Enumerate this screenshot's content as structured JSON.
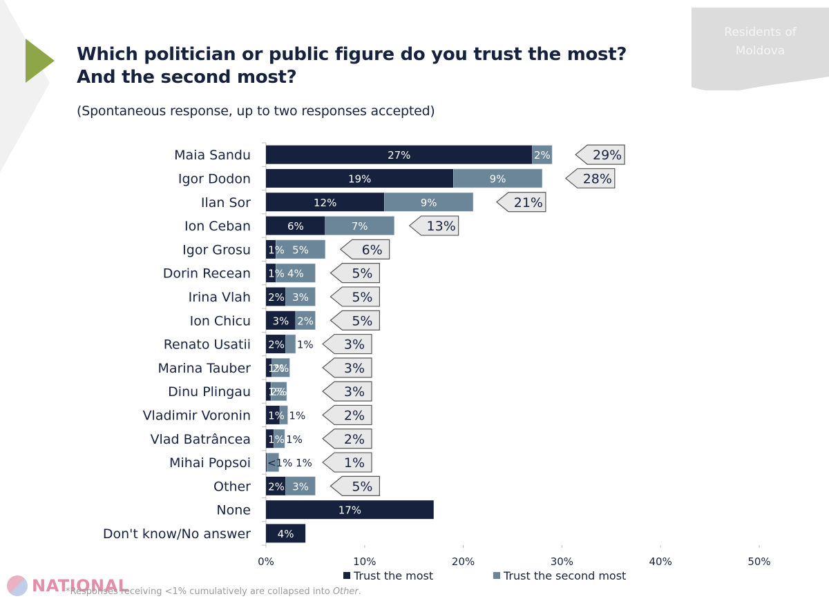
{
  "header": {
    "title_line1": "Which politician or public figure do you trust the most?",
    "title_line2": "And the second most?",
    "subtitle": "(Spontaneous response, up to two responses accepted)",
    "region_tag_line1": "Residents of",
    "region_tag_line2": "Moldova"
  },
  "colors": {
    "trust_most": "#16213e",
    "trust_second": "#6b8599",
    "total_callout_fill": "#e8e8e8",
    "total_callout_stroke": "#555555",
    "accent_arrow": "#8fa648"
  },
  "chart_data": {
    "type": "bar",
    "orientation": "horizontal",
    "stacked": true,
    "title": "Which politician or public figure do you trust the most? And the second most?",
    "subtitle": "(Spontaneous response, up to two responses accepted)",
    "xlabel": "",
    "ylabel": "",
    "xlim": [
      0,
      50
    ],
    "x_ticks": [
      "0%",
      "10%",
      "20%",
      "30%",
      "40%",
      "50%"
    ],
    "x_tick_values": [
      0,
      10,
      20,
      30,
      40,
      50
    ],
    "grid": false,
    "legend_position": "bottom",
    "categories": [
      "Maia Sandu",
      "Igor Dodon",
      "Ilan Sor",
      "Ion Ceban",
      "Igor Grosu",
      "Dorin Recean",
      "Irina Vlah",
      "Ion Chicu",
      "Renato Usatii",
      "Marina Tauber",
      "Dinu Plingau",
      "Vladimir Voronin",
      "Vlad Batrâncea",
      "Mihai Popsoi",
      "Other",
      "None",
      "Don't know/No answer"
    ],
    "series": [
      {
        "name": "Trust the most",
        "values": [
          27,
          19,
          12,
          6,
          1,
          1,
          2,
          3,
          2,
          0.6,
          0.5,
          1.4,
          0.8,
          0.1,
          2,
          17,
          4
        ],
        "labels": [
          "27%",
          "19%",
          "12%",
          "6%",
          "1%",
          "1%",
          "2%",
          "3%",
          "2%",
          "1%",
          "1%",
          "1%",
          "1%",
          "",
          "2%",
          "17%",
          "4%"
        ]
      },
      {
        "name": "Trust the second most",
        "values": [
          2,
          9,
          9,
          7,
          5,
          4,
          3,
          2,
          1,
          1.8,
          1.6,
          0.8,
          1.1,
          1.2,
          3,
          0,
          0
        ],
        "labels": [
          "2%",
          "9%",
          "9%",
          "7%",
          "5%",
          "4%",
          "3%",
          "2%",
          "1%",
          "2%",
          "2%",
          "1%",
          "1%",
          "<1% 1%",
          "3%",
          "",
          ""
        ]
      }
    ],
    "totals": [
      "29%",
      "28%",
      "21%",
      "13%",
      "6%",
      "5%",
      "5%",
      "5%",
      "3%",
      "3%",
      "3%",
      "2%",
      "2%",
      "1%",
      "5%",
      "",
      ""
    ],
    "legend": [
      "Trust the most",
      "Trust the second most"
    ]
  },
  "footnote": {
    "prefix": "*Responses receiving <1% cumulatively are collapsed into ",
    "italic": "Other",
    "suffix": "."
  },
  "watermark": {
    "text": "NATIONAL"
  }
}
